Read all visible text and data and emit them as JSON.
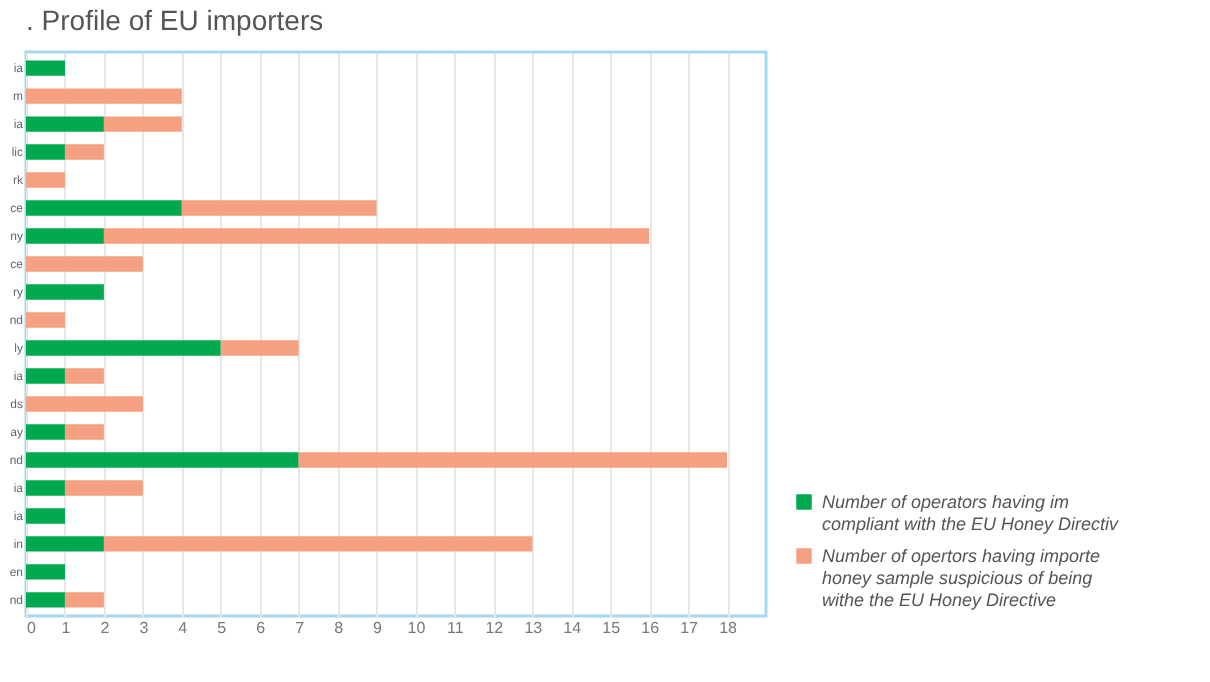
{
  "chart_data": {
    "type": "bar",
    "orientation": "horizontal",
    "stacked": true,
    "title": ". Profile of EU importers",
    "categories": [
      "ia",
      "m",
      "ia",
      "lic",
      "rk",
      "ce",
      "ny",
      "ce",
      "ry",
      "nd",
      "ly",
      "ia",
      "ds",
      "ay",
      "nd",
      "ia",
      "ia",
      "in",
      "en",
      "nd"
    ],
    "series": [
      {
        "name": "Number of operators having im compliant with the EU Honey Directiv",
        "color": "#00a84f",
        "values": [
          1,
          null,
          2,
          1,
          null,
          4,
          2,
          null,
          2,
          null,
          5,
          1,
          null,
          1,
          7,
          1,
          1,
          2,
          1,
          1
        ]
      },
      {
        "name": "Number of opertors having importe honey sample suspicious of being withe the EU Honey Directive",
        "color": "#f4a081",
        "values": [
          null,
          4,
          2,
          1,
          1,
          5,
          14,
          3,
          null,
          1,
          2,
          1,
          3,
          1,
          11,
          2,
          null,
          11,
          null,
          1
        ]
      }
    ],
    "xlim": [
      0,
      19
    ],
    "xticks": [
      0,
      1,
      2,
      3,
      4,
      5,
      6,
      7,
      8,
      9,
      10,
      11,
      12,
      13,
      14,
      15,
      16,
      17,
      18
    ],
    "grid": "x",
    "legend": "bottom right"
  }
}
